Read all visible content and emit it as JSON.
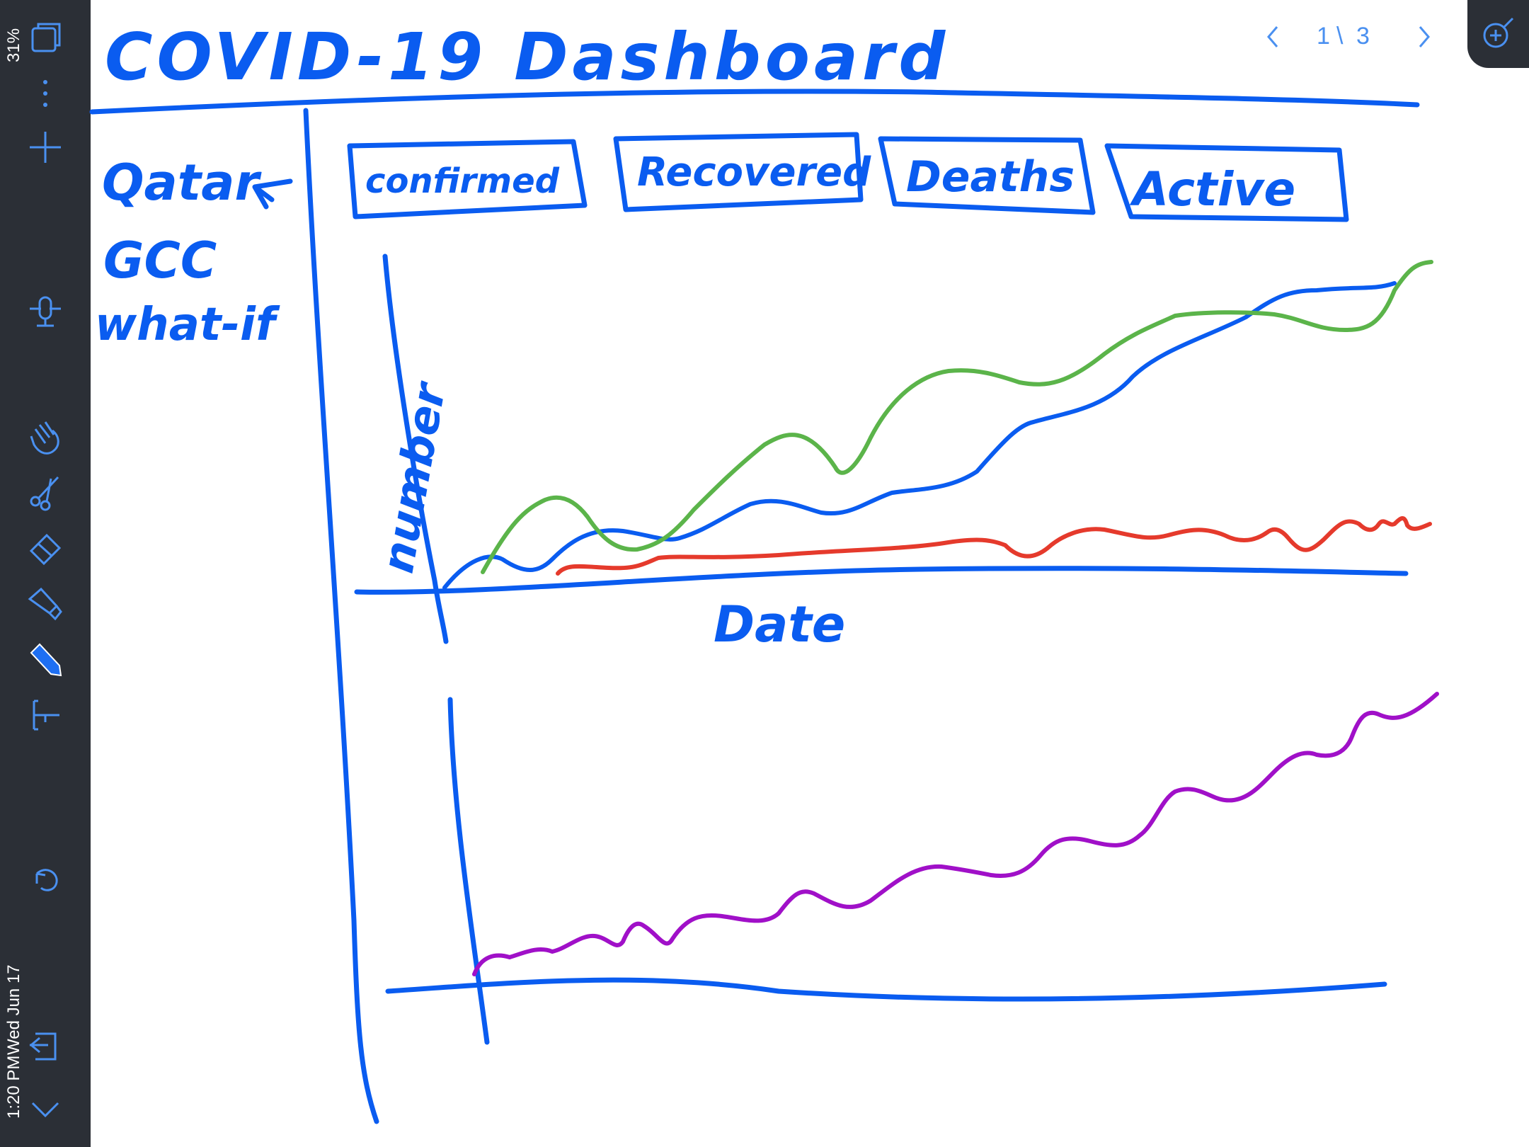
{
  "status_bar": {
    "time": "1:20 PM",
    "date": "Wed Jun 17",
    "battery": "31%"
  },
  "toolbar": {
    "icons": [
      "pages-icon",
      "more-icon",
      "add-icon",
      "microphone-icon",
      "hand-icon",
      "scissors-icon",
      "eraser-icon",
      "highlighter-icon",
      "pen-icon",
      "text-tool-icon",
      "undo-icon",
      "export-icon",
      "chevron-down-icon"
    ]
  },
  "pager": {
    "current": "1",
    "separator": "\\",
    "total": "3"
  },
  "sketch": {
    "title": "COVID-19 Dashboard",
    "sidebar": [
      "Qatar",
      "GCC",
      "what-if"
    ],
    "tabs": [
      "confirmed",
      "Recovered",
      "Deaths",
      "Active"
    ],
    "chart1": {
      "ylabel": "number",
      "xlabel": "Date"
    }
  },
  "colors": {
    "ink_blue": "#0a5cf0",
    "green": "#5bb44a",
    "red": "#e53a2c",
    "purple": "#a010c8",
    "toolbar": "#2b2f36"
  }
}
